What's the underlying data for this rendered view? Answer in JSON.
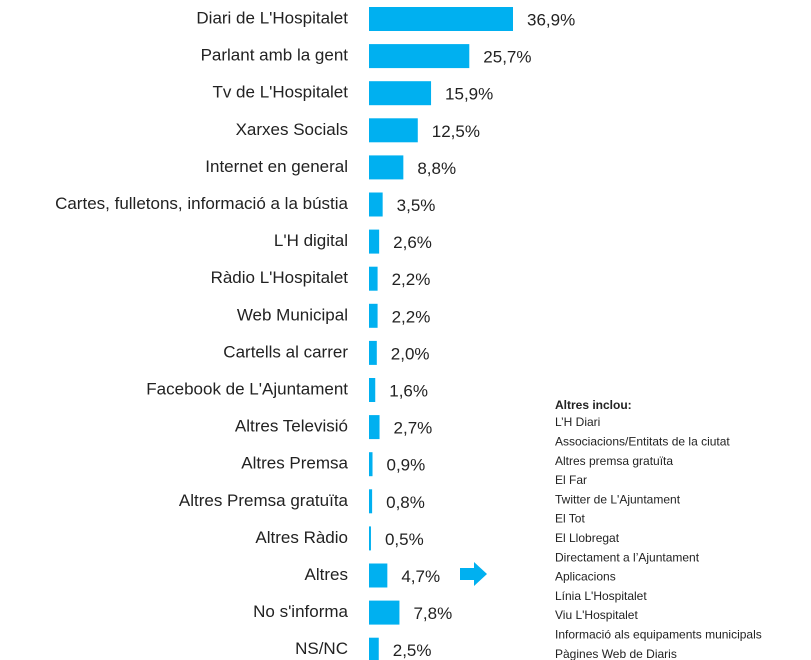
{
  "chart_data": {
    "type": "barh",
    "categories": [
      "Diari de L'Hospitalet",
      "Parlant amb la gent",
      "Tv de L'Hospitalet",
      "Xarxes Socials",
      "Internet en general",
      "Cartes, fulletons, informació a la bústia",
      "L'H digital",
      "Ràdio L'Hospitalet",
      "Web Municipal",
      "Cartells al carrer",
      "Facebook de L'Ajuntament",
      "Altres Televisió",
      "Altres Premsa",
      "Altres Premsa gratuïta",
      "Altres Ràdio",
      "Altres",
      "No s'informa",
      "NS/NC"
    ],
    "values": [
      36.9,
      25.7,
      15.9,
      12.5,
      8.8,
      3.5,
      2.6,
      2.2,
      2.2,
      2.0,
      1.6,
      2.7,
      0.9,
      0.8,
      0.5,
      4.7,
      7.8,
      2.5
    ],
    "value_labels": [
      "36,9%",
      "25,7%",
      "15,9%",
      "12,5%",
      "8,8%",
      "3,5%",
      "2,6%",
      "2,2%",
      "2,2%",
      "2,0%",
      "1,6%",
      "2,7%",
      "0,9%",
      "0,8%",
      "0,5%",
      "4,7%",
      "7,8%",
      "2,5%"
    ],
    "color": "#00b0f0",
    "annotation": {
      "title": "Altres inclou:",
      "items": [
        "L’H Diari",
        "Associacions/Entitats de la ciutat",
        "Altres premsa gratuïta",
        "El Far",
        "Twitter de L'Ajuntament",
        "El Tot",
        "El Llobregat",
        "Directament a l’Ajuntament",
        "Aplicacions",
        "Línia L'Hospitalet",
        "Viu L'Hospitalet",
        "Informació als equipaments municipals",
        "Pàgines Web de Diaris"
      ]
    }
  }
}
